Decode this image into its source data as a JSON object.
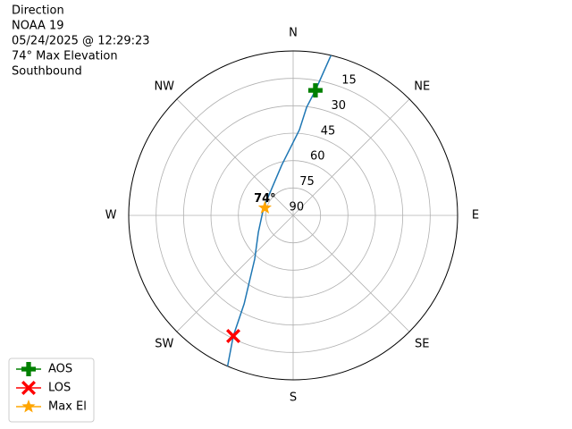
{
  "chart_data": {
    "type": "polar",
    "title": [
      "Direction",
      "NOAA 19",
      "05/24/2025 @ 12:29:23",
      "74° Max Elevation",
      "Southbound"
    ],
    "thetaticks": [
      {
        "value": 0,
        "label": "N"
      },
      {
        "value": 45,
        "label": "NE"
      },
      {
        "value": 90,
        "label": "E"
      },
      {
        "value": 135,
        "label": "SE"
      },
      {
        "value": 180,
        "label": "S"
      },
      {
        "value": 225,
        "label": "SW"
      },
      {
        "value": 270,
        "label": "W"
      },
      {
        "value": 315,
        "label": "NW"
      }
    ],
    "rlim": [
      90,
      0
    ],
    "rticks": [
      15,
      30,
      45,
      60,
      75,
      90
    ],
    "grid": true,
    "track": {
      "color": "#1f77b4",
      "az": [
        13.3,
        10.1,
        7.1,
        4.2,
        347,
        285,
        244,
        221.3,
        209,
        206.4,
        203.5
      ],
      "el": [
        0,
        20.5,
        30.4,
        43,
        61.9,
        73.3,
        68.8,
        58.1,
        34.7,
        16.3,
        0
      ]
    },
    "series": [
      {
        "name": "AOS",
        "color": "green",
        "marker": "plus",
        "az": [
          10.1
        ],
        "el": [
          20.5
        ]
      },
      {
        "name": "LOS",
        "color": "red",
        "marker": "x",
        "az": [
          206.4
        ],
        "el": [
          16.3
        ]
      },
      {
        "name": "Max El",
        "color": "orange",
        "marker": "star",
        "az": [
          285
        ],
        "el": [
          74
        ],
        "value_labels": [
          "74°"
        ]
      }
    ],
    "legend": "lower left"
  }
}
